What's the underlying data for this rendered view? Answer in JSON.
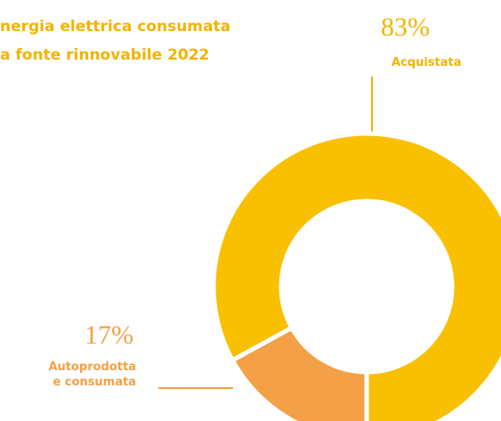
{
  "chart_data": {
    "type": "pie",
    "title": [
      "nergia elettrica consumata",
      "a fonte rinnovabile 2022"
    ],
    "categories": [
      "Acquistata",
      "Autoprodotta e consumata"
    ],
    "values": [
      83,
      17
    ],
    "value_labels": [
      "83%",
      "17%"
    ],
    "colors": [
      "#f9c000",
      "#f3a046"
    ]
  }
}
